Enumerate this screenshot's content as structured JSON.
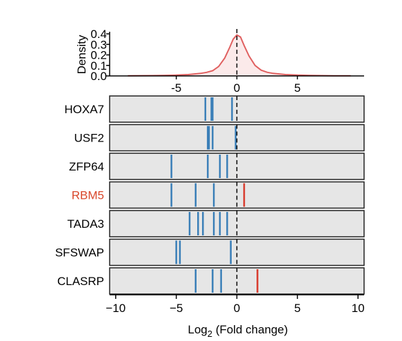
{
  "chart_data": [
    {
      "type": "area",
      "ylabel": "Density",
      "yticks": [
        "0.0",
        "0.1",
        "0.2",
        "0.3",
        "0.4"
      ],
      "ylim": [
        0,
        0.42
      ],
      "xlim": [
        -10.5,
        10.5
      ],
      "xticks": [
        -5,
        0,
        5
      ],
      "xtick_labels": [
        "-5",
        "0",
        "5"
      ],
      "reference_line_x": 0,
      "grid": false,
      "density_curve": {
        "x": [
          -9,
          -7,
          -6,
          -5,
          -4,
          -3,
          -2.5,
          -2,
          -1.5,
          -1,
          -0.6,
          -0.3,
          0,
          0.3,
          0.6,
          1,
          1.5,
          2,
          2.5,
          3,
          4,
          5,
          6,
          7,
          8,
          9.4
        ],
        "y": [
          0.002,
          0.003,
          0.005,
          0.008,
          0.013,
          0.024,
          0.034,
          0.05,
          0.09,
          0.17,
          0.27,
          0.35,
          0.39,
          0.37,
          0.29,
          0.19,
          0.1,
          0.055,
          0.035,
          0.024,
          0.013,
          0.008,
          0.005,
          0.003,
          0.002,
          0.002
        ]
      }
    },
    {
      "type": "scatter",
      "xlabel_main": "Log",
      "xlabel_sub": "2",
      "xlabel_tail": " (Fold change)",
      "xlim": [
        -10.5,
        10.5
      ],
      "xticks": [
        -10,
        -5,
        0,
        5,
        10
      ],
      "xtick_labels": [
        "−10",
        "−5",
        "0",
        "5",
        "10"
      ],
      "reference_line_x": 0,
      "grid": false,
      "colors": {
        "down": "#3a7fb8",
        "up": "#d83a2c",
        "highlight_label": "#d9472b",
        "panel_fill": "#e6e6e6",
        "curve": "#e06060"
      },
      "genes": [
        {
          "name": "HOXA7",
          "highlight": false,
          "values": [
            -2.6,
            -2.1,
            -2.0,
            -0.4
          ]
        },
        {
          "name": "USF2",
          "highlight": false,
          "values": [
            -2.4,
            -2.3,
            -2.0,
            -0.1
          ]
        },
        {
          "name": "ZFP64",
          "highlight": false,
          "values": [
            -5.4,
            -2.4,
            -1.4,
            -0.8
          ]
        },
        {
          "name": "RBM5",
          "highlight": true,
          "values": [
            -5.4,
            -3.4,
            -1.9,
            0.6
          ]
        },
        {
          "name": "TADA3",
          "highlight": false,
          "values": [
            -3.9,
            -3.2,
            -2.8,
            -1.9,
            -1.4,
            -0.8
          ]
        },
        {
          "name": "SFSWAP",
          "highlight": false,
          "values": [
            -5.0,
            -4.7,
            -0.5
          ]
        },
        {
          "name": "CLASRP",
          "highlight": false,
          "values": [
            -3.4,
            -2.0,
            -1.3,
            1.7
          ]
        }
      ]
    }
  ]
}
